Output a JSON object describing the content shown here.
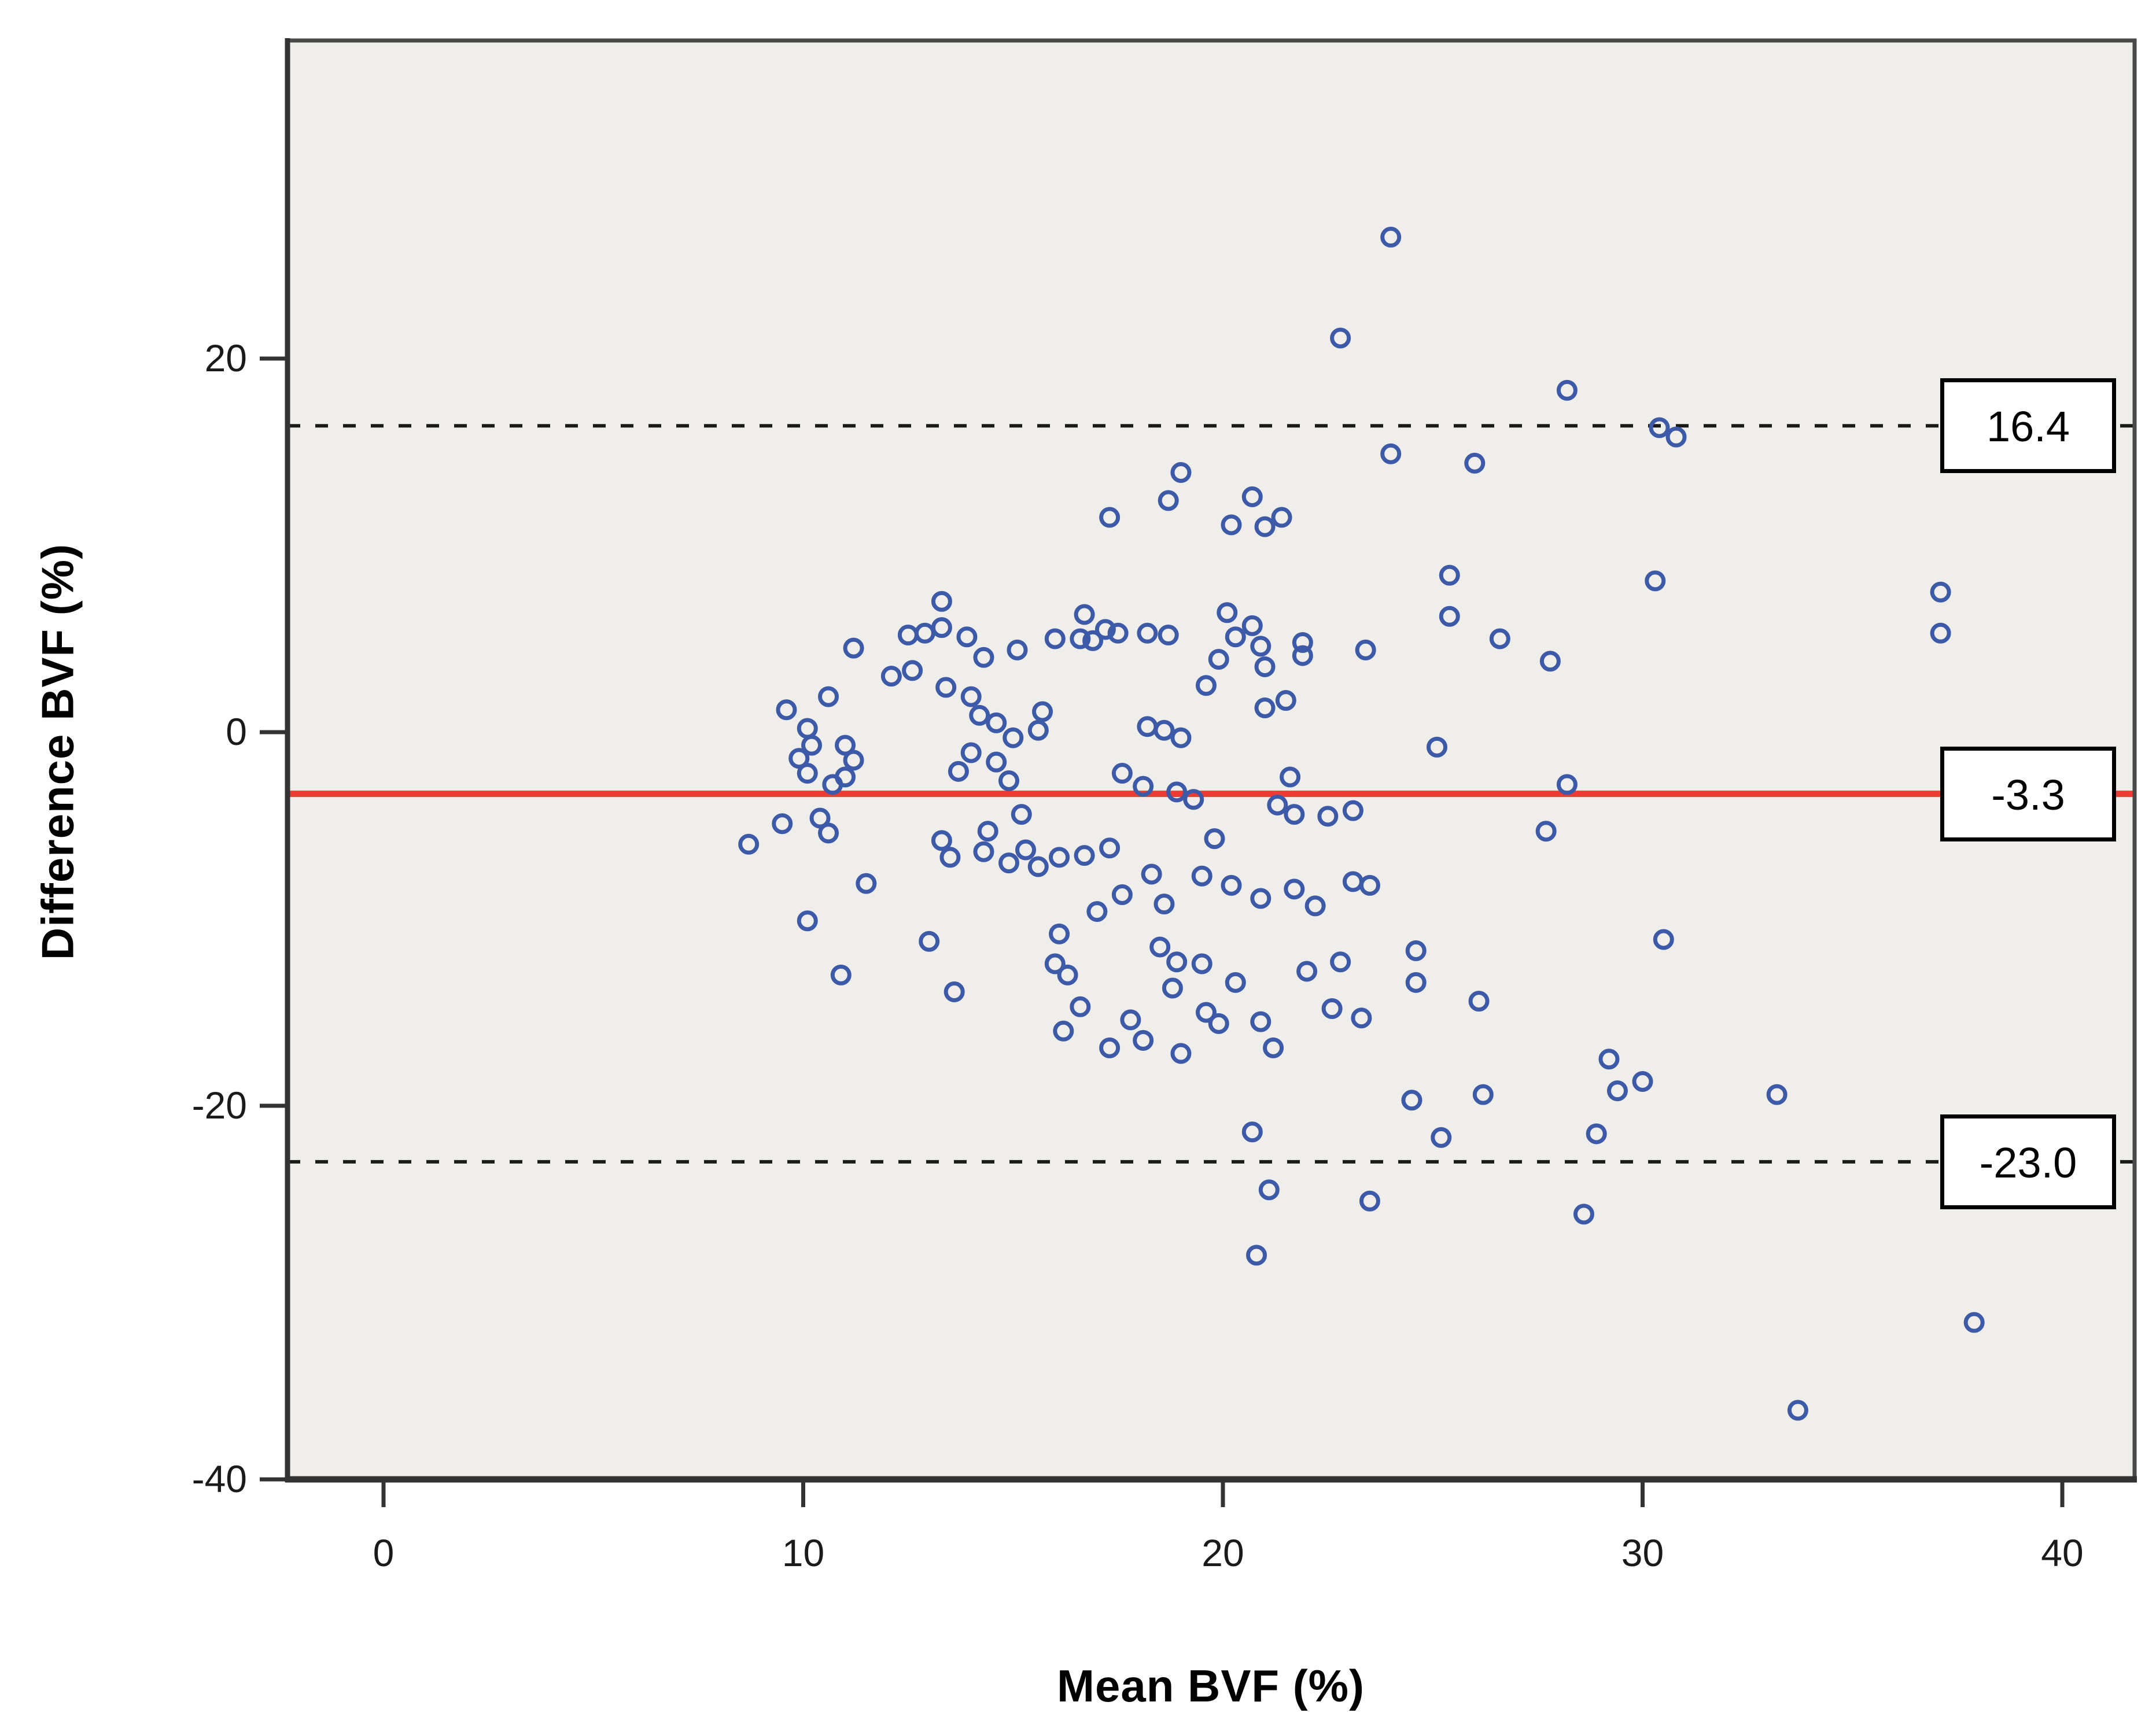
{
  "chart_data": {
    "type": "scatter",
    "title": "",
    "xlabel": "Mean BVF (%)",
    "ylabel": "Difference BVF (%)",
    "xlim": [
      -2.3,
      41.7
    ],
    "ylim": [
      -40,
      37
    ],
    "x_ticks": [
      0,
      10,
      20,
      30,
      40
    ],
    "y_ticks": [
      20,
      0,
      -20,
      -40
    ],
    "grid": "off",
    "legend": "none",
    "plot_background": "#EFEEEB",
    "frame_color": "#4a4a4a",
    "marker": {
      "shape": "open-circle",
      "color": "#3D5AA8"
    },
    "reference_lines": [
      {
        "value": 16.4,
        "label": "16.4",
        "style": "dashed",
        "color": "#1a1a1a"
      },
      {
        "value": -3.3,
        "label": "-3.3",
        "style": "solid",
        "color": "#EE3B33"
      },
      {
        "value": -23.0,
        "label": "-23.0",
        "style": "dashed",
        "color": "#1a1a1a"
      }
    ],
    "points": [
      [
        24,
        26.5
      ],
      [
        22.8,
        21.1
      ],
      [
        28.2,
        18.3
      ],
      [
        30.4,
        16.3
      ],
      [
        30.8,
        15.8
      ],
      [
        24,
        14.9
      ],
      [
        26,
        14.4
      ],
      [
        19,
        13.9
      ],
      [
        18.7,
        12.4
      ],
      [
        20.7,
        12.6
      ],
      [
        17.3,
        11.5
      ],
      [
        20.2,
        11.1
      ],
      [
        21,
        11
      ],
      [
        21.4,
        11.5
      ],
      [
        25.4,
        8.4
      ],
      [
        30.3,
        8.1
      ],
      [
        13.3,
        7
      ],
      [
        37.1,
        7.5
      ],
      [
        37.1,
        5.3
      ],
      [
        16.7,
        6.3
      ],
      [
        17.2,
        5.5
      ],
      [
        16.6,
        5
      ],
      [
        18.2,
        5.3
      ],
      [
        20.1,
        6.4
      ],
      [
        20.7,
        5.7
      ],
      [
        20.3,
        5.1
      ],
      [
        20.9,
        4.6
      ],
      [
        19.9,
        3.9
      ],
      [
        19.6,
        2.5
      ],
      [
        21,
        3.5
      ],
      [
        21.9,
        4.8
      ],
      [
        21.9,
        4.1
      ],
      [
        23.4,
        4.4
      ],
      [
        25.4,
        6.2
      ],
      [
        26.6,
        5
      ],
      [
        27.8,
        3.8
      ],
      [
        12.5,
        5.2
      ],
      [
        12.9,
        5.3
      ],
      [
        13.3,
        5.6
      ],
      [
        13.9,
        5.1
      ],
      [
        14.3,
        4
      ],
      [
        16,
        5
      ],
      [
        16.9,
        4.9
      ],
      [
        17.5,
        5.3
      ],
      [
        18.7,
        5.2
      ],
      [
        11.2,
        4.5
      ],
      [
        15.1,
        4.4
      ],
      [
        12.1,
        3
      ],
      [
        12.6,
        3.3
      ],
      [
        13.4,
        2.4
      ],
      [
        14,
        1.9
      ],
      [
        10.6,
        1.9
      ],
      [
        9.6,
        1.2
      ],
      [
        10.1,
        0.2
      ],
      [
        14.2,
        0.9
      ],
      [
        14.6,
        0.5
      ],
      [
        15,
        -0.3
      ],
      [
        15.6,
        0.1
      ],
      [
        15.7,
        1.1
      ],
      [
        18.2,
        0.3
      ],
      [
        18.6,
        0.1
      ],
      [
        19,
        -0.3
      ],
      [
        21,
        1.3
      ],
      [
        21.5,
        1.7
      ],
      [
        25.1,
        -0.8
      ],
      [
        10.2,
        -0.7
      ],
      [
        9.9,
        -1.4
      ],
      [
        10.1,
        -2.2
      ],
      [
        11,
        -0.7
      ],
      [
        11.2,
        -1.5
      ],
      [
        11,
        -2.4
      ],
      [
        10.7,
        -2.8
      ],
      [
        14,
        -1.1
      ],
      [
        13.7,
        -2.1
      ],
      [
        14.6,
        -1.6
      ],
      [
        14.9,
        -2.6
      ],
      [
        17.6,
        -2.2
      ],
      [
        18.1,
        -2.9
      ],
      [
        18.9,
        -3.2
      ],
      [
        19.3,
        -3.6
      ],
      [
        21.6,
        -2.4
      ],
      [
        28.2,
        -2.8
      ],
      [
        10.4,
        -4.6
      ],
      [
        10.6,
        -5.4
      ],
      [
        9.5,
        -4.9
      ],
      [
        8.7,
        -6
      ],
      [
        21.3,
        -3.9
      ],
      [
        21.7,
        -4.4
      ],
      [
        22.5,
        -4.5
      ],
      [
        23.1,
        -4.2
      ],
      [
        27.7,
        -5.3
      ],
      [
        17.3,
        -6.2
      ],
      [
        16.7,
        -6.6
      ],
      [
        18.3,
        -7.6
      ],
      [
        19.5,
        -7.7
      ],
      [
        19.8,
        -5.7
      ],
      [
        20.2,
        -8.2
      ],
      [
        13.3,
        -5.8
      ],
      [
        13.5,
        -6.7
      ],
      [
        14.3,
        -6.4
      ],
      [
        14.9,
        -7
      ],
      [
        15.3,
        -6.3
      ],
      [
        15.6,
        -7.2
      ],
      [
        16.1,
        -6.7
      ],
      [
        14.4,
        -5.3
      ],
      [
        15.2,
        -4.4
      ],
      [
        11.5,
        -8.1
      ],
      [
        10.1,
        -10.1
      ],
      [
        13,
        -11.2
      ],
      [
        10.9,
        -13
      ],
      [
        13.6,
        -13.9
      ],
      [
        16,
        -12.4
      ],
      [
        16.3,
        -13
      ],
      [
        16.1,
        -10.8
      ],
      [
        17,
        -9.6
      ],
      [
        17.6,
        -8.7
      ],
      [
        18.6,
        -9.2
      ],
      [
        20.9,
        -8.9
      ],
      [
        21.7,
        -8.4
      ],
      [
        22.2,
        -9.3
      ],
      [
        23.1,
        -8
      ],
      [
        23.5,
        -8.2
      ],
      [
        20.9,
        -15.5
      ],
      [
        21.2,
        -16.9
      ],
      [
        18.5,
        -11.5
      ],
      [
        18.9,
        -12.3
      ],
      [
        19.5,
        -12.4
      ],
      [
        18.8,
        -13.7
      ],
      [
        20.3,
        -13.4
      ],
      [
        16.6,
        -14.7
      ],
      [
        17.8,
        -15.4
      ],
      [
        18.1,
        -16.5
      ],
      [
        19,
        -17.2
      ],
      [
        22,
        -12.8
      ],
      [
        22.8,
        -12.3
      ],
      [
        22.6,
        -14.8
      ],
      [
        24.6,
        -13.4
      ],
      [
        24.6,
        -11.7
      ],
      [
        16.2,
        -16
      ],
      [
        17.3,
        -16.9
      ],
      [
        19.6,
        -15
      ],
      [
        19.9,
        -15.6
      ],
      [
        23.3,
        -15.3
      ],
      [
        26.1,
        -14.4
      ],
      [
        30.5,
        -11.1
      ],
      [
        20.7,
        -21.4
      ],
      [
        21.1,
        -24.5
      ],
      [
        20.8,
        -28
      ],
      [
        23.5,
        -25.1
      ],
      [
        24.5,
        -19.7
      ],
      [
        25.2,
        -21.7
      ],
      [
        26.2,
        -19.4
      ],
      [
        29.2,
        -17.5
      ],
      [
        29.4,
        -19.2
      ],
      [
        30,
        -18.7
      ],
      [
        28.9,
        -21.5
      ],
      [
        33.2,
        -19.4
      ],
      [
        28.6,
        -25.8
      ],
      [
        37.9,
        -31.6
      ],
      [
        33.7,
        -36.3
      ]
    ]
  }
}
